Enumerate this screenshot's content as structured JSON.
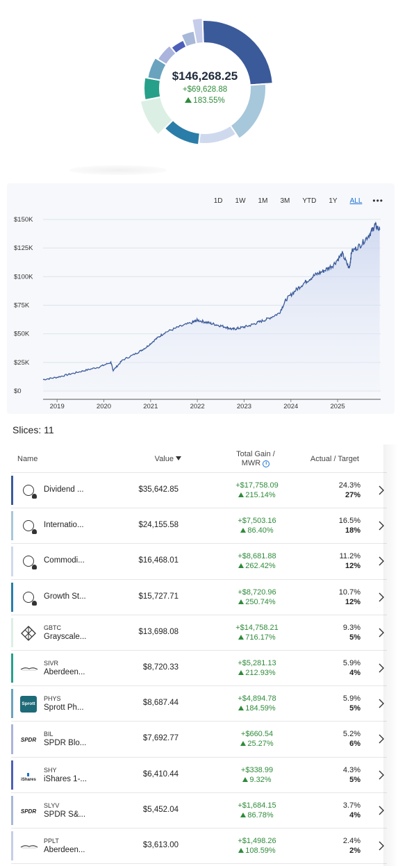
{
  "summary": {
    "total_value": "$146,268.25",
    "total_gain": "+$69,628.88",
    "total_gain_pct": "183.55%"
  },
  "donut": {
    "slices": [
      {
        "name": "Dividend",
        "pct": 24.3,
        "color": "#3b5a9a"
      },
      {
        "name": "International",
        "pct": 16.5,
        "color": "#a7c7db"
      },
      {
        "name": "Commodities",
        "pct": 11.2,
        "color": "#cfd9ee"
      },
      {
        "name": "Growth",
        "pct": 10.7,
        "color": "#2a7da8"
      },
      {
        "name": "GBTC",
        "pct": 9.3,
        "color": "#dcefe4"
      },
      {
        "name": "SIVR",
        "pct": 5.9,
        "color": "#27a08a"
      },
      {
        "name": "PHYS",
        "pct": 5.9,
        "color": "#6aa3be"
      },
      {
        "name": "BIL",
        "pct": 5.2,
        "color": "#aab4dc"
      },
      {
        "name": "SHY",
        "pct": 4.3,
        "color": "#4d5fb8"
      },
      {
        "name": "SLYV",
        "pct": 3.7,
        "color": "#a8b8d8"
      },
      {
        "name": "PPLT",
        "pct": 2.4,
        "color": "#c6cdea"
      }
    ]
  },
  "chart": {
    "ranges": [
      "1D",
      "1W",
      "1M",
      "3M",
      "YTD",
      "1Y",
      "ALL"
    ],
    "active_range": "ALL",
    "more_label": "•••",
    "line_color": "#3b5a9a"
  },
  "chart_data": {
    "type": "area",
    "ylim": [
      0,
      150000
    ],
    "y_ticks": [
      "$0",
      "$25K",
      "$50K",
      "$75K",
      "$100K",
      "$125K",
      "$150K"
    ],
    "x_ticks": [
      "2019",
      "2020",
      "2021",
      "2022",
      "2023",
      "2024",
      "2025"
    ],
    "x": [
      2018.7,
      2019.0,
      2019.3,
      2019.6,
      2019.9,
      2020.15,
      2020.2,
      2020.4,
      2020.7,
      2020.9,
      2021.1,
      2021.3,
      2021.6,
      2021.9,
      2022.0,
      2022.2,
      2022.4,
      2022.6,
      2022.75,
      2022.9,
      2023.1,
      2023.3,
      2023.5,
      2023.75,
      2023.9,
      2024.1,
      2024.3,
      2024.5,
      2024.7,
      2024.9,
      2025.1,
      2025.25,
      2025.3,
      2025.5,
      2025.7,
      2025.8,
      2025.9
    ],
    "values": [
      10000,
      12000,
      15000,
      18000,
      21000,
      25000,
      18000,
      27000,
      33000,
      38000,
      45000,
      51000,
      56000,
      60000,
      62000,
      60000,
      58000,
      56000,
      54000,
      55000,
      57000,
      60000,
      63000,
      68000,
      80000,
      88000,
      95000,
      101000,
      105000,
      110000,
      120000,
      107000,
      122000,
      128000,
      138000,
      145000,
      141000
    ]
  },
  "slices_label": "Slices: 11",
  "table": {
    "headers": {
      "name": "Name",
      "value": "Value",
      "gain_line1": "Total Gain /",
      "gain_line2": "MWR",
      "actual_target": "Actual / Target"
    },
    "rows": [
      {
        "ticker": "",
        "name": "Dividend ...",
        "icon": "pie-icon",
        "value": "$35,642.85",
        "gain": "+$17,758.09",
        "mwr": "215.14%",
        "actual": "24.3%",
        "target": "27%",
        "color": "#3b5a9a"
      },
      {
        "ticker": "",
        "name": "Internatio...",
        "icon": "pie-icon",
        "value": "$24,155.58",
        "gain": "+$7,503.16",
        "mwr": "86.40%",
        "actual": "16.5%",
        "target": "18%",
        "color": "#a7c7db"
      },
      {
        "ticker": "",
        "name": "Commodi...",
        "icon": "pie-icon",
        "value": "$16,468.01",
        "gain": "+$8,681.88",
        "mwr": "262.42%",
        "actual": "11.2%",
        "target": "12%",
        "color": "#cfd9ee"
      },
      {
        "ticker": "",
        "name": "Growth St...",
        "icon": "pie-icon",
        "value": "$15,727.71",
        "gain": "+$8,720.96",
        "mwr": "250.74%",
        "actual": "10.7%",
        "target": "12%",
        "color": "#2a7da8"
      },
      {
        "ticker": "GBTC",
        "name": "Grayscale...",
        "icon": "grayscale-logo",
        "value": "$13,698.08",
        "gain": "+$14,758.21",
        "mwr": "716.17%",
        "actual": "9.3%",
        "target": "5%",
        "color": "#dcefe4"
      },
      {
        "ticker": "SIVR",
        "name": "Aberdeen...",
        "icon": "aberdeen-logo",
        "value": "$8,720.33",
        "gain": "+$5,281.13",
        "mwr": "212.93%",
        "actual": "5.9%",
        "target": "4%",
        "color": "#27a08a"
      },
      {
        "ticker": "PHYS",
        "name": "Sprott Ph...",
        "icon": "sprott-logo",
        "logo_text": "Sprott",
        "value": "$8,687.44",
        "gain": "+$4,894.78",
        "mwr": "184.59%",
        "actual": "5.9%",
        "target": "5%",
        "color": "#6aa3be"
      },
      {
        "ticker": "BIL",
        "name": "SPDR Blo...",
        "icon": "spdr-logo",
        "logo_text": "SPDR",
        "value": "$7,692.77",
        "gain": "+$660.54",
        "mwr": "25.27%",
        "actual": "5.2%",
        "target": "6%",
        "color": "#aab4dc"
      },
      {
        "ticker": "SHY",
        "name": "iShares 1-...",
        "icon": "ishares-logo",
        "logo_text": "iShares",
        "value": "$6,410.44",
        "gain": "+$338.99",
        "mwr": "9.32%",
        "actual": "4.3%",
        "target": "5%",
        "color": "#4d5fb8"
      },
      {
        "ticker": "SLYV",
        "name": "SPDR S&...",
        "icon": "spdr-logo",
        "logo_text": "SPDR",
        "value": "$5,452.04",
        "gain": "+$1,684.15",
        "mwr": "86.78%",
        "actual": "3.7%",
        "target": "4%",
        "color": "#a8b8d8"
      },
      {
        "ticker": "PPLT",
        "name": "Aberdeen...",
        "icon": "aberdeen-logo",
        "value": "$3,613.00",
        "gain": "+$1,498.26",
        "mwr": "108.59%",
        "actual": "2.4%",
        "target": "2%",
        "color": "#c6cdea"
      }
    ]
  }
}
